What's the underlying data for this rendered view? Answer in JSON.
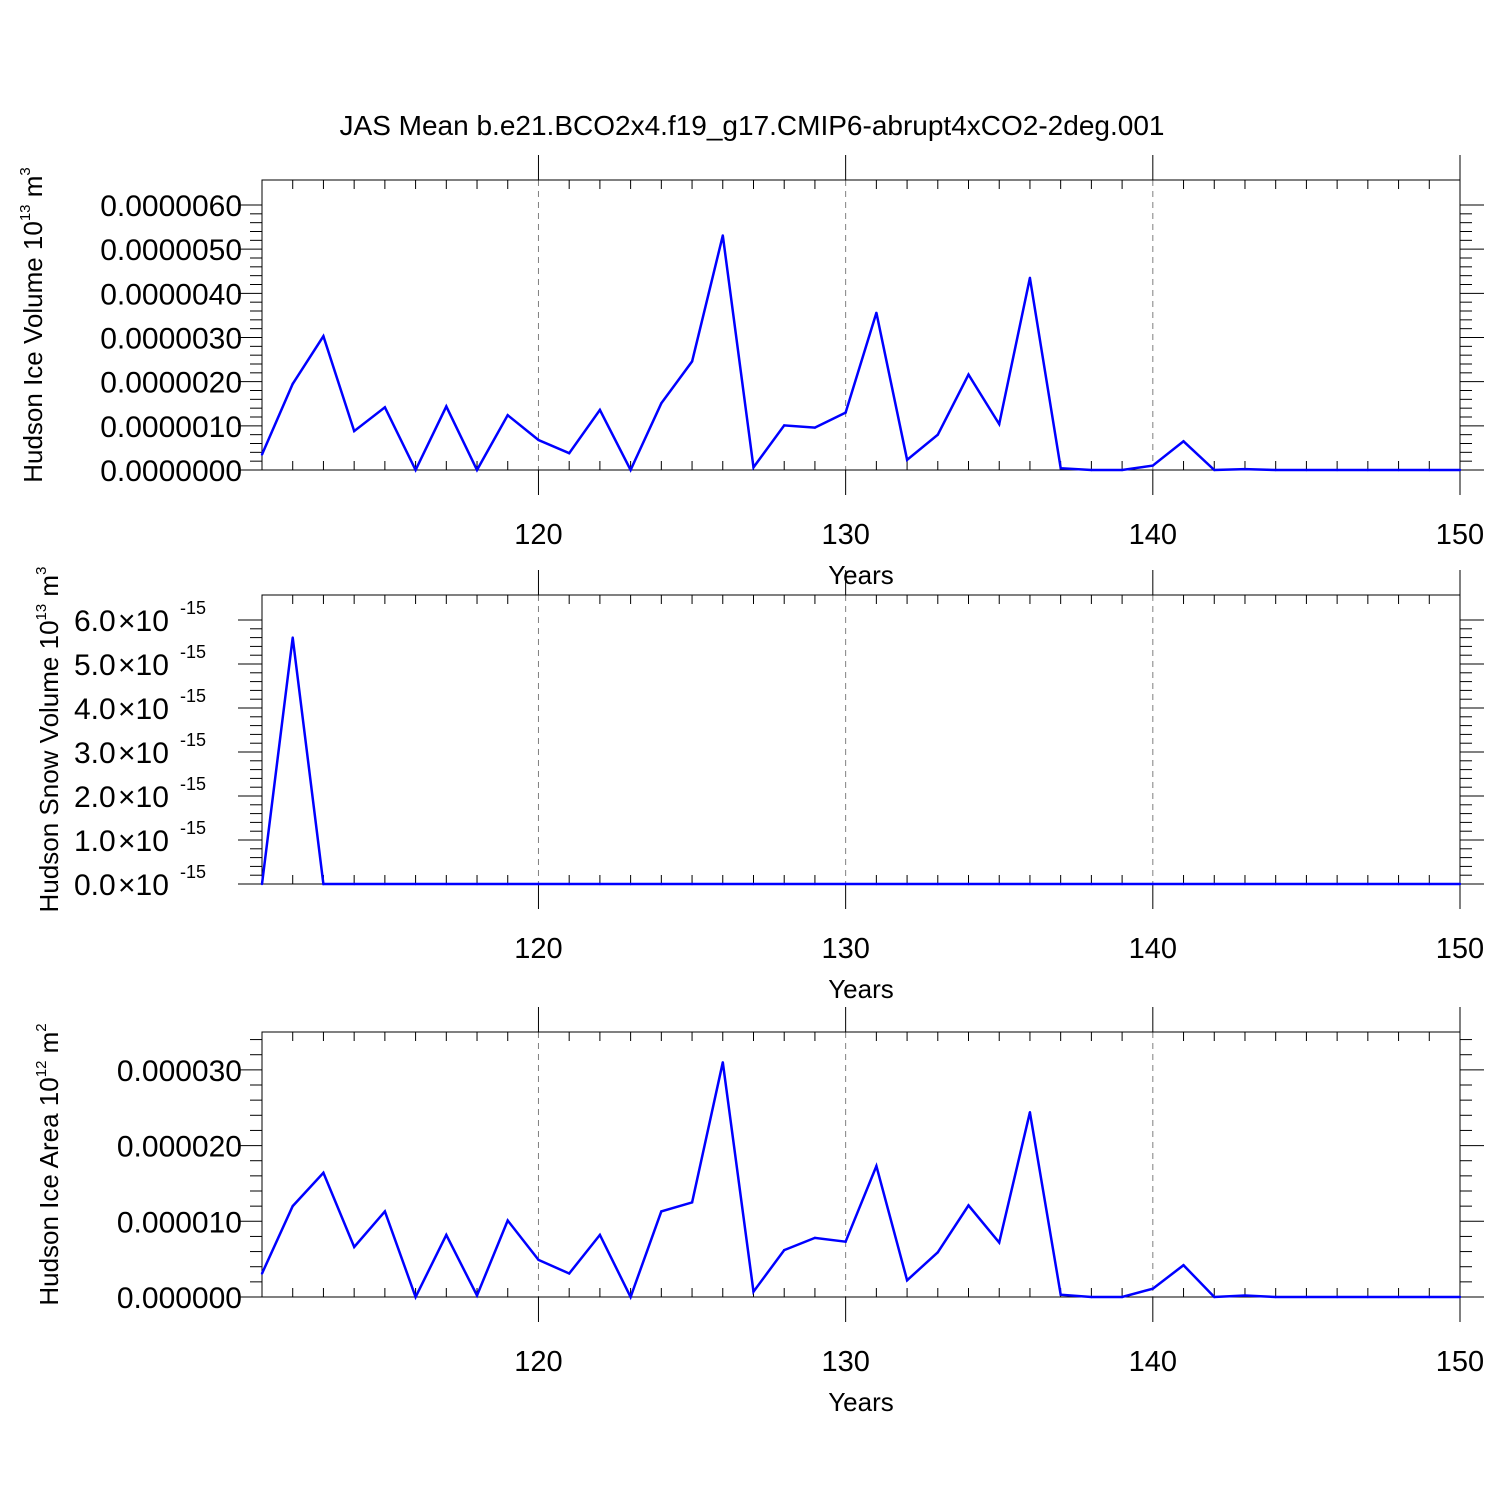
{
  "title": "JAS Mean b.e21.BCO2x4.f19_g17.CMIP6-abrupt4xCO2-2deg.001",
  "colors": {
    "series": "#0000ff",
    "axes": "#000000",
    "grid": "#808080"
  },
  "chart_data": [
    {
      "type": "line",
      "ylabel": "Hudson Ice Volume 10",
      "ylabel_exp": "13",
      "ylabel_unit": "m",
      "ylabel_unit_exp": "3",
      "xlabel": "Years",
      "xlim": [
        111,
        150
      ],
      "ylim": [
        0,
        6e-06
      ],
      "xticks": [
        120,
        130,
        140,
        150
      ],
      "xtick_labels": [
        "120",
        "130",
        "140",
        "150"
      ],
      "yticks": [
        0,
        1e-06,
        2e-06,
        3e-06,
        4e-06,
        5e-06,
        6e-06
      ],
      "ytick_labels": [
        "0.0000000",
        "0.0000010",
        "0.0000020",
        "0.0000030",
        "0.0000040",
        "0.0000050",
        "0.0000060"
      ],
      "grid": "vertical-dashed",
      "x": [
        111,
        112,
        113,
        114,
        115,
        116,
        117,
        118,
        119,
        120,
        121,
        122,
        123,
        124,
        125,
        126,
        127,
        128,
        129,
        130,
        131,
        132,
        133,
        134,
        135,
        136,
        137,
        138,
        139,
        140,
        141,
        142,
        143,
        144,
        145,
        146,
        147,
        148,
        149,
        150
      ],
      "values": [
        3.5e-07,
        1.95e-06,
        3.03e-06,
        8.8e-07,
        1.42e-06,
        0.0,
        1.44e-06,
        0.0,
        1.24e-06,
        6.8e-07,
        3.8e-07,
        1.36e-06,
        0.0,
        1.51e-06,
        2.46e-06,
        5.31e-06,
        6e-08,
        1.01e-06,
        9.6e-07,
        1.3e-06,
        3.56e-06,
        2.3e-07,
        8e-07,
        2.16e-06,
        1.04e-06,
        4.35e-06,
        4e-08,
        0.0,
        0.0,
        1e-07,
        6.5e-07,
        0.0,
        2e-08,
        0.0,
        0.0,
        0.0,
        0.0,
        0.0,
        0.0,
        0.0
      ]
    },
    {
      "type": "line",
      "ylabel": "Hudson Snow Volume 10",
      "ylabel_exp": "13",
      "ylabel_unit": "m",
      "ylabel_unit_exp": "3",
      "xlabel": "Years",
      "xlim": [
        111,
        150
      ],
      "ylim": [
        0,
        6e-15
      ],
      "xticks": [
        120,
        130,
        140,
        150
      ],
      "xtick_labels": [
        "120",
        "130",
        "140",
        "150"
      ],
      "yticks": [
        0,
        1e-15,
        2e-15,
        3e-15,
        4e-15,
        5e-15,
        6e-15
      ],
      "ytick_labels": [
        {
          "mant": "0.0",
          "exp": "-15"
        },
        {
          "mant": "1.0",
          "exp": "-15"
        },
        {
          "mant": "2.0",
          "exp": "-15"
        },
        {
          "mant": "3.0",
          "exp": "-15"
        },
        {
          "mant": "4.0",
          "exp": "-15"
        },
        {
          "mant": "5.0",
          "exp": "-15"
        },
        {
          "mant": "6.0",
          "exp": "-15"
        }
      ],
      "grid": "vertical-dashed",
      "x": [
        111,
        112,
        113,
        114,
        115,
        116,
        117,
        118,
        119,
        120,
        121,
        122,
        123,
        124,
        125,
        126,
        127,
        128,
        129,
        130,
        131,
        132,
        133,
        134,
        135,
        136,
        137,
        138,
        139,
        140,
        141,
        142,
        143,
        144,
        145,
        146,
        147,
        148,
        149,
        150
      ],
      "values": [
        0.0,
        5.6e-15,
        0.0,
        0.0,
        0.0,
        0.0,
        0.0,
        0.0,
        0.0,
        0.0,
        0.0,
        0.0,
        0.0,
        0.0,
        0.0,
        0.0,
        0.0,
        0.0,
        0.0,
        0.0,
        0.0,
        0.0,
        0.0,
        0.0,
        0.0,
        0.0,
        0.0,
        0.0,
        0.0,
        0.0,
        0.0,
        0.0,
        0.0,
        0.0,
        0.0,
        0.0,
        0.0,
        0.0,
        0.0,
        0.0
      ]
    },
    {
      "type": "line",
      "ylabel": "Hudson Ice Area 10",
      "ylabel_exp": "12",
      "ylabel_unit": "m",
      "ylabel_unit_exp": "2",
      "xlabel": "Years",
      "xlim": [
        111,
        150
      ],
      "ylim": [
        0,
        3.5e-05
      ],
      "xticks": [
        120,
        130,
        140,
        150
      ],
      "xtick_labels": [
        "120",
        "130",
        "140",
        "150"
      ],
      "yticks": [
        0,
        1e-05,
        2e-05,
        3e-05
      ],
      "ytick_labels": [
        "0.000000",
        "0.000010",
        "0.000020",
        "0.000030"
      ],
      "grid": "vertical-dashed",
      "x": [
        111,
        112,
        113,
        114,
        115,
        116,
        117,
        118,
        119,
        120,
        121,
        122,
        123,
        124,
        125,
        126,
        127,
        128,
        129,
        130,
        131,
        132,
        133,
        134,
        135,
        136,
        137,
        138,
        139,
        140,
        141,
        142,
        143,
        144,
        145,
        146,
        147,
        148,
        149,
        150
      ],
      "values": [
        3.1e-06,
        1.2e-05,
        1.64e-05,
        6.6e-06,
        1.13e-05,
        0.0,
        8.2e-06,
        2e-07,
        1.01e-05,
        4.9e-06,
        3.1e-06,
        8.2e-06,
        0.0,
        1.13e-05,
        1.25e-05,
        3.1e-05,
        7e-07,
        6.2e-06,
        7.8e-06,
        7.3e-06,
        1.73e-05,
        2.2e-06,
        5.9e-06,
        1.21e-05,
        7.2e-06,
        2.44e-05,
        3e-07,
        0.0,
        0.0,
        1.1e-06,
        4.2e-06,
        0.0,
        2e-07,
        0.0,
        0.0,
        0.0,
        0.0,
        0.0,
        0.0,
        0.0
      ]
    }
  ]
}
